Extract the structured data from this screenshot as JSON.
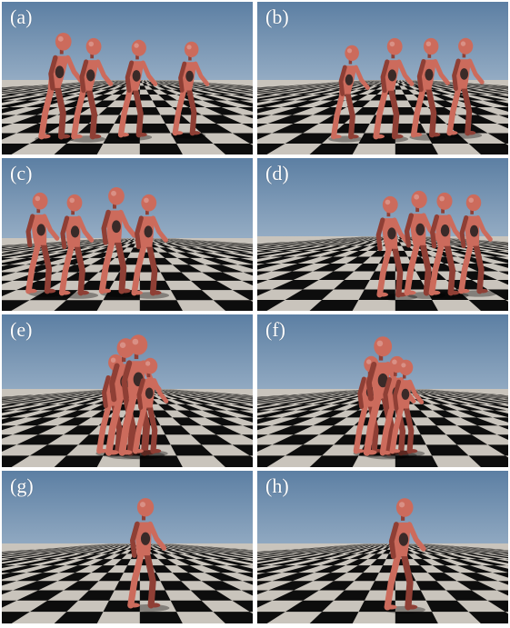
{
  "panels": [
    {
      "id": "a",
      "label": "(a)",
      "figures": 4
    },
    {
      "id": "b",
      "label": "(b)",
      "figures": 4
    },
    {
      "id": "c",
      "label": "(c)",
      "figures": 4
    },
    {
      "id": "d",
      "label": "(d)",
      "figures": 4
    },
    {
      "id": "e",
      "label": "(e)",
      "figures": 4
    },
    {
      "id": "f",
      "label": "(f)",
      "figures": 4
    },
    {
      "id": "g",
      "label": "(g)",
      "figures": 1
    },
    {
      "id": "h",
      "label": "(h)",
      "figures": 1
    }
  ],
  "colors": {
    "sky_top": "#5c7fa3",
    "sky_bottom": "#c9d6e2",
    "tile_dark": "#0d0d0d",
    "tile_light": "#c9c4bc",
    "figure": "#cc6b5c",
    "figure_shade": "#8f3f35",
    "label": "#ffffff"
  }
}
